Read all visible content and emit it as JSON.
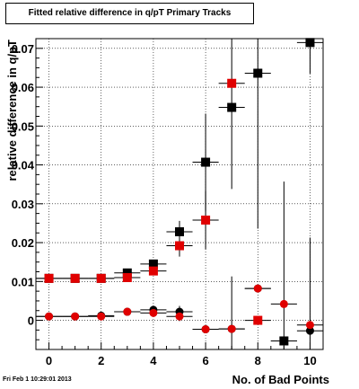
{
  "chart_data": {
    "type": "scatter",
    "title": "Fitted relative difference in q/pT Primary Tracks",
    "xlabel": "No. of Bad Points",
    "ylabel": "relative difference in q/pT",
    "xlim": [
      -0.5,
      10.5
    ],
    "ylim": [
      -0.0075,
      0.0725
    ],
    "x_ticks": [
      0,
      2,
      4,
      6,
      8,
      10
    ],
    "y_ticks": [
      0,
      0.01,
      0.02,
      0.03,
      0.04,
      0.05,
      0.06,
      0.07
    ],
    "y_tick_labels": [
      "0",
      "0.01",
      "0.02",
      "0.03",
      "0.04",
      "0.05",
      "0.06",
      "0.07"
    ],
    "grid": true,
    "series": [
      {
        "marker": "square",
        "color": "#000000",
        "points": [
          {
            "x": 0,
            "y": 0.0108,
            "yerr": 0.0004
          },
          {
            "x": 1,
            "y": 0.0108,
            "yerr": 0.0004
          },
          {
            "x": 2,
            "y": 0.0108,
            "yerr": 0.0004
          },
          {
            "x": 3,
            "y": 0.0122,
            "yerr": 0.0008
          },
          {
            "x": 4,
            "y": 0.0145,
            "yerr": 0.001
          },
          {
            "x": 5,
            "y": 0.0228,
            "yerr": 0.0028
          },
          {
            "x": 6,
            "y": 0.0407,
            "yerr": 0.0125
          },
          {
            "x": 7,
            "y": 0.0548,
            "yerr": 0.021
          },
          {
            "x": 8,
            "y": 0.0636,
            "yerr": 0.04
          },
          {
            "x": 9,
            "y": -0.0053,
            "yerr": 0.0
          },
          {
            "x": 10,
            "y": 0.0715,
            "yerr": 0.008
          }
        ]
      },
      {
        "marker": "square",
        "color": "#e00000",
        "points": [
          {
            "x": 0,
            "y": 0.0108,
            "yerr": 0.0004
          },
          {
            "x": 1,
            "y": 0.0108,
            "yerr": 0.0004
          },
          {
            "x": 2,
            "y": 0.0108,
            "yerr": 0.0004
          },
          {
            "x": 3,
            "y": 0.011,
            "yerr": 0.0006
          },
          {
            "x": 4,
            "y": 0.0127,
            "yerr": 0.0008
          },
          {
            "x": 5,
            "y": 0.0192,
            "yerr": 0.0028
          },
          {
            "x": 6,
            "y": 0.0258,
            "yerr": 0.0075
          },
          {
            "x": 7,
            "y": 0.061,
            "yerr": 0.0
          },
          {
            "x": 8,
            "y": 0.0,
            "yerr": 0.0
          }
        ]
      },
      {
        "marker": "circle",
        "color": "#000000",
        "points": [
          {
            "x": 0,
            "y": 0.001,
            "yerr": 0.0003
          },
          {
            "x": 1,
            "y": 0.001,
            "yerr": 0.0003
          },
          {
            "x": 2,
            "y": 0.0012,
            "yerr": 0.0003
          },
          {
            "x": 3,
            "y": 0.0022,
            "yerr": 0.0006
          },
          {
            "x": 4,
            "y": 0.0027,
            "yerr": 0.001
          },
          {
            "x": 5,
            "y": 0.0022,
            "yerr": 0.0015
          },
          {
            "x": 6,
            "y": -0.0023,
            "yerr": 0.0
          },
          {
            "x": 7,
            "y": -0.0022,
            "yerr": 0.0
          },
          {
            "x": 8,
            "y": 0.0082,
            "yerr": 0.0
          },
          {
            "x": 9,
            "y": -0.0053,
            "yerr": 0.041
          },
          {
            "x": 10,
            "y": -0.0027,
            "yerr": 0.024
          }
        ]
      },
      {
        "marker": "circle",
        "color": "#e00000",
        "points": [
          {
            "x": 0,
            "y": 0.001,
            "yerr": 0.0003
          },
          {
            "x": 1,
            "y": 0.001,
            "yerr": 0.0003
          },
          {
            "x": 2,
            "y": 0.001,
            "yerr": 0.0003
          },
          {
            "x": 3,
            "y": 0.0022,
            "yerr": 0.0005
          },
          {
            "x": 4,
            "y": 0.0019,
            "yerr": 0.0008
          },
          {
            "x": 5,
            "y": 0.001,
            "yerr": 0.0012
          },
          {
            "x": 6,
            "y": -0.0023,
            "yerr": 0.0
          },
          {
            "x": 7,
            "y": -0.0022,
            "yerr": 0.0135
          },
          {
            "x": 8,
            "y": 0.0082,
            "yerr": 0.0
          },
          {
            "x": 9,
            "y": 0.0042,
            "yerr": 0.0
          },
          {
            "x": 10,
            "y": -0.0012,
            "yerr": 0.0
          }
        ]
      }
    ]
  },
  "footer": "Fri Feb  1 10:29:01 2013"
}
